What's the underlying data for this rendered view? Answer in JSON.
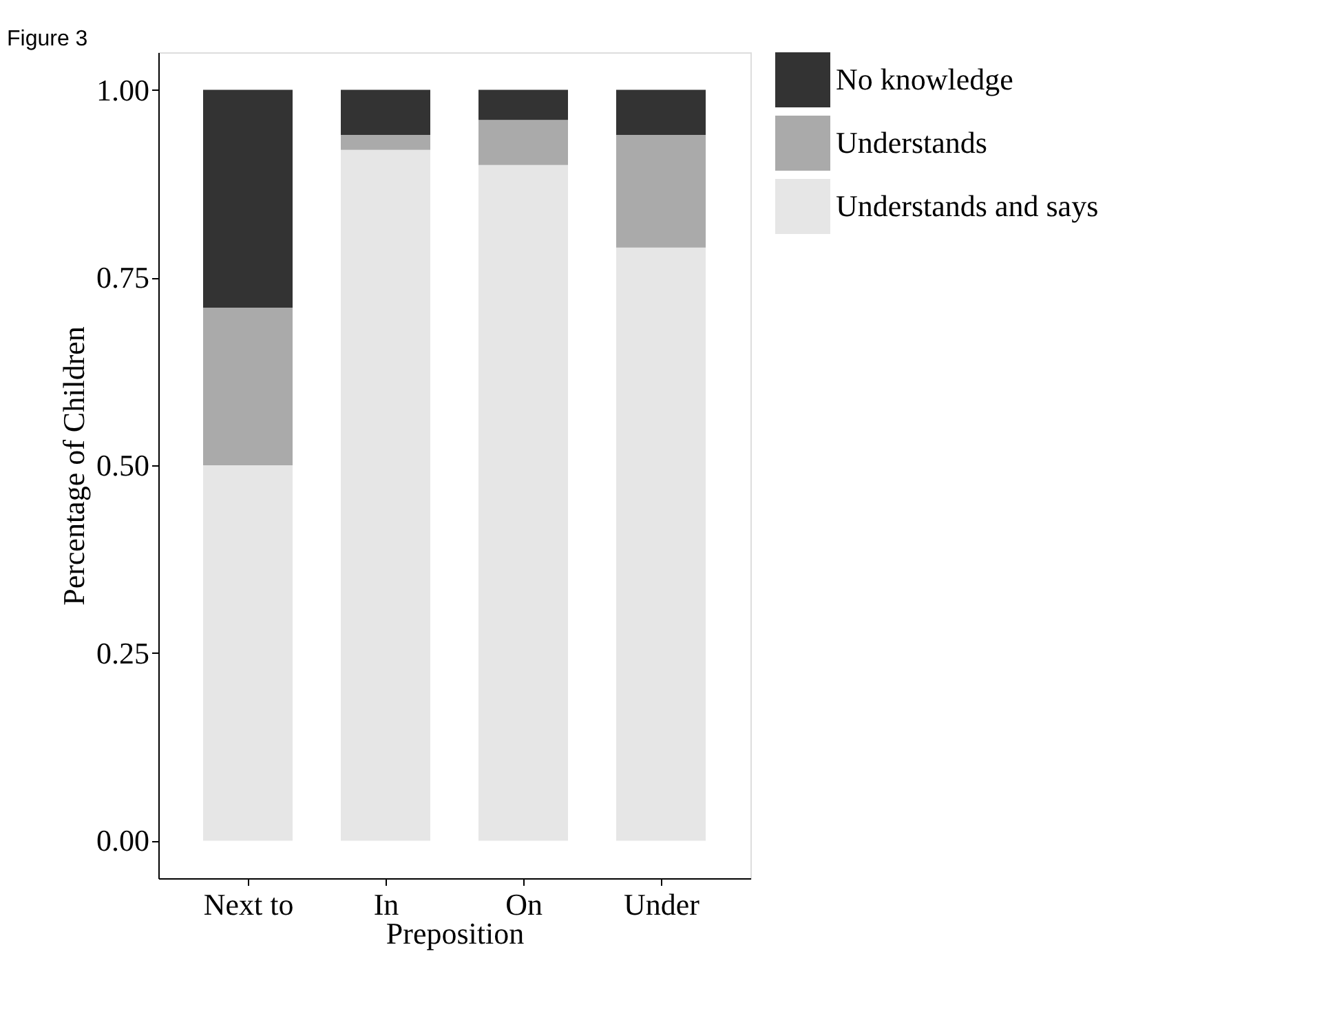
{
  "chart_data": {
    "type": "bar",
    "stacked": true,
    "xlabel": "Preposition",
    "ylabel": "Percentage of Children",
    "categories": [
      "Next to",
      "In",
      "On",
      "Under"
    ],
    "series": [
      {
        "name": "Understands and says",
        "color": "#e6e6e6",
        "values": [
          0.5,
          0.92,
          0.9,
          0.79
        ]
      },
      {
        "name": "Understands",
        "color": "#aaaaaa",
        "values": [
          0.21,
          0.02,
          0.06,
          0.15
        ]
      },
      {
        "name": "No knowledge",
        "color": "#333333",
        "values": [
          0.29,
          0.06,
          0.04,
          0.06
        ]
      }
    ],
    "ylim": [
      -0.05,
      1.05
    ],
    "yticks": [
      {
        "value": 0,
        "label": "0.00"
      },
      {
        "value": 0.25,
        "label": "0.25"
      },
      {
        "value": 0.5,
        "label": "0.50"
      },
      {
        "value": 0.75,
        "label": "0.75"
      },
      {
        "value": 1,
        "label": "1.00"
      }
    ],
    "grid": false,
    "legend": "right",
    "annotations": [
      "Figure 3"
    ]
  }
}
